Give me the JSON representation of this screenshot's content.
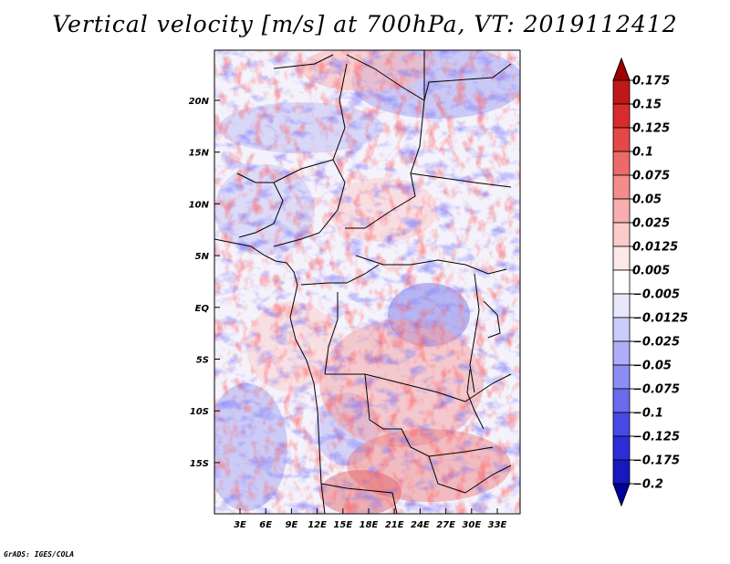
{
  "title": "Vertical velocity [m/s] at 700hPa, VT: 2019112412",
  "credit": "GrADS: IGES/COLA",
  "map": {
    "lat_labels": [
      "20N",
      "15N",
      "10N",
      "5N",
      "EQ",
      "5S",
      "10S",
      "15S"
    ],
    "lon_labels": [
      "3E",
      "6E",
      "9E",
      "12E",
      "15E",
      "18E",
      "21E",
      "24E",
      "27E",
      "30E",
      "33E"
    ]
  },
  "colorbar": {
    "labels": [
      "0.175",
      "0.15",
      "0.125",
      "0.1",
      "0.075",
      "0.05",
      "0.025",
      "0.0125",
      "0.005",
      "−0.005",
      "−0.0125",
      "−0.025",
      "−0.05",
      "−0.075",
      "−0.1",
      "−0.125",
      "−0.175",
      "−0.2"
    ],
    "colors": [
      "#a00000",
      "#c01818",
      "#d82c2c",
      "#e64848",
      "#ee6a6a",
      "#f48c8c",
      "#f8aeae",
      "#fbcccc",
      "#fde8e8",
      "#ffffff",
      "#e8e8fd",
      "#ccccfb",
      "#aeaef8",
      "#8c8cf4",
      "#6a6aee",
      "#4848e6",
      "#2c2cd8",
      "#1818c0",
      "#0000a0"
    ]
  }
}
